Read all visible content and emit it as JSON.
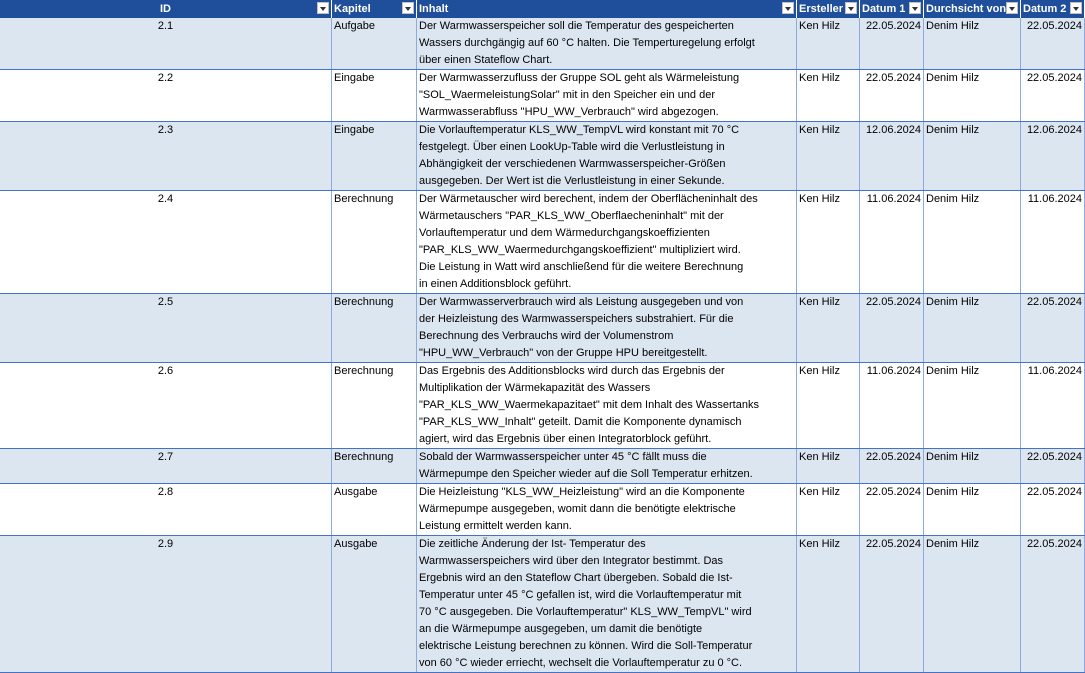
{
  "table": {
    "columns": [
      "ID",
      "Kapitel",
      "Inhalt",
      "Ersteller",
      "Datum 1",
      "Durchsicht von",
      "Datum 2"
    ],
    "rows": [
      {
        "id": "2.1",
        "kapitel": "Aufgabe",
        "inhalt": [
          "Der Warmwasserspeicher soll die Temperatur des gespeicherten",
          "Wassers durchgängig auf 60 °C halten. Die Temperturegelung erfolgt",
          "über einen Stateflow Chart."
        ],
        "ersteller": "Ken Hilz",
        "datum1": "22.05.2024",
        "durchsicht": "Denim Hilz",
        "datum2": "22.05.2024"
      },
      {
        "id": "2.2",
        "kapitel": "Eingabe",
        "inhalt": [
          "Der Warmwasserzufluss der Gruppe SOL geht als Wärmeleistung",
          "\"SOL_WaermeleistungSolar\" mit in den Speicher ein und der",
          "Warmwasserabfluss \"HPU_WW_Verbrauch\" wird abgezogen."
        ],
        "ersteller": "Ken Hilz",
        "datum1": "22.05.2024",
        "durchsicht": "Denim Hilz",
        "datum2": "22.05.2024"
      },
      {
        "id": "2.3",
        "kapitel": "Eingabe",
        "inhalt": [
          "Die Vorlauftemperatur KLS_WW_TempVL wird konstant mit 70 °C",
          "festgelegt. Über einen LookUp-Table wird die Verlustleistung in",
          "Abhängigkeit der verschiedenen Warmwasserspeicher-Größen",
          "ausgegeben. Der Wert ist die Verlustleistung in einer Sekunde."
        ],
        "ersteller": "Ken Hilz",
        "datum1": "12.06.2024",
        "durchsicht": "Denim Hilz",
        "datum2": "12.06.2024"
      },
      {
        "id": "2.4",
        "kapitel": "Berechnung",
        "inhalt": [
          "Der Wärmetauscher wird berechent, indem der Oberflächeninhalt des",
          "Wärmetauschers \"PAR_KLS_WW_Oberflaecheninhalt\" mit der",
          "Vorlauftemperatur und dem Wärmedurchgangskoeffizienten",
          "\"PAR_KLS_WW_Waermedurchgangskoeffizient\" multipliziert wird.",
          "Die Leistung in Watt wird anschließend für die weitere Berechnung",
          "in einen Additionsblock geführt."
        ],
        "ersteller": "Ken Hilz",
        "datum1": "11.06.2024",
        "durchsicht": "Denim Hilz",
        "datum2": "11.06.2024"
      },
      {
        "id": "2.5",
        "kapitel": "Berechnung",
        "inhalt": [
          "Der Warmwasserverbrauch wird als Leistung ausgegeben und von",
          "der Heizleistung des Warmwasserspeichers substrahiert. Für die",
          "Berechnung des Verbrauchs wird der Volumenstrom",
          "\"HPU_WW_Verbrauch\" von der Gruppe HPU bereitgestellt."
        ],
        "ersteller": "Ken Hilz",
        "datum1": "22.05.2024",
        "durchsicht": "Denim Hilz",
        "datum2": "22.05.2024"
      },
      {
        "id": "2.6",
        "kapitel": "Berechnung",
        "inhalt": [
          "Das Ergebnis des Additionsblocks wird durch das Ergebnis der",
          "Multiplikation der Wärmekapazität des Wassers",
          "\"PAR_KLS_WW_Waermekapazitaet\" mit dem Inhalt des Wassertanks",
          "\"PAR_KLS_WW_Inhalt\" geteilt. Damit die Komponente dynamisch",
          "agiert, wird das Ergebnis über einen Integratorblock geführt."
        ],
        "ersteller": "Ken Hilz",
        "datum1": "11.06.2024",
        "durchsicht": "Denim Hilz",
        "datum2": "11.06.2024"
      },
      {
        "id": "2.7",
        "kapitel": "Berechnung",
        "inhalt": [
          "Sobald der Warmwasserspeicher unter 45 °C fällt muss die",
          "Wärmepumpe den Speicher wieder auf die Soll Temperatur erhitzen."
        ],
        "ersteller": "Ken Hilz",
        "datum1": "22.05.2024",
        "durchsicht": "Denim Hilz",
        "datum2": "22.05.2024"
      },
      {
        "id": "2.8",
        "kapitel": "Ausgabe",
        "inhalt": [
          "Die Heizleistung \"KLS_WW_Heizleistung\" wird an die Komponente",
          "Wärmepumpe ausgegeben, womit dann die benötigte elektrische",
          "Leistung ermittelt werden kann."
        ],
        "ersteller": "Ken Hilz",
        "datum1": "22.05.2024",
        "durchsicht": "Denim Hilz",
        "datum2": "22.05.2024"
      },
      {
        "id": "2.9",
        "kapitel": "Ausgabe",
        "inhalt": [
          "Die zeitliche Änderung der Ist- Temperatur des",
          "Warmwasserspeichers wird  über den Integrator bestimmt. Das",
          "Ergebnis wird an den Stateflow Chart übergeben. Sobald die Ist-",
          "Temperatur unter 45 °C gefallen ist, wird die Vorlauftemperatur mit",
          "70 °C ausgegeben.  Die Vorlauftemperatur\" KLS_WW_TempVL\" wird",
          "an die Wärmepumpe ausgegeben, um damit die benötigte",
          "elektrische Leistung berechnen zu können. Wird die Soll-Temperatur",
          "von 60 °C wieder erriecht, wechselt  die Vorlauftemperatur zu 0 °C."
        ],
        "ersteller": "Ken Hilz",
        "datum1": "22.05.2024",
        "durchsicht": "Denim Hilz",
        "datum2": "22.05.2024"
      }
    ]
  }
}
